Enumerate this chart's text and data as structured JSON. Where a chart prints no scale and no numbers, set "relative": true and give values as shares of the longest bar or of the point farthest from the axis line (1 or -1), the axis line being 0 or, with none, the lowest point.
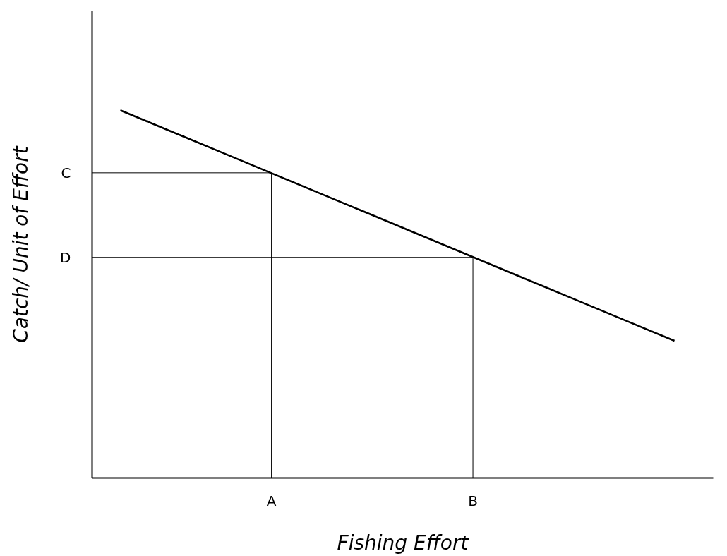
{
  "chart_data": {
    "type": "line",
    "relative": true,
    "xlabel": "Fishing Effort",
    "ylabel": "Catch/ Unit of Effort",
    "categories": [
      null,
      null,
      null,
      "A",
      null,
      null,
      null,
      "B",
      null,
      null,
      null,
      null
    ],
    "series": [
      {
        "color": "#000000",
        "values": [
          1,
          0.943,
          0.886,
          0.829,
          0.772,
          0.715,
          0.658,
          0.601,
          0.544,
          0.487,
          0.43,
          0.373
        ]
      }
    ],
    "ref_lines": [
      {
        "axis": "x",
        "value": "A"
      },
      {
        "axis": "x",
        "value": "B"
      },
      {
        "axis": "y",
        "value": 0.83,
        "label": "C"
      },
      {
        "axis": "y",
        "value": 0.6,
        "label": "D"
      }
    ],
    "grid": false,
    "marker": "none",
    "line_style": "solid"
  }
}
